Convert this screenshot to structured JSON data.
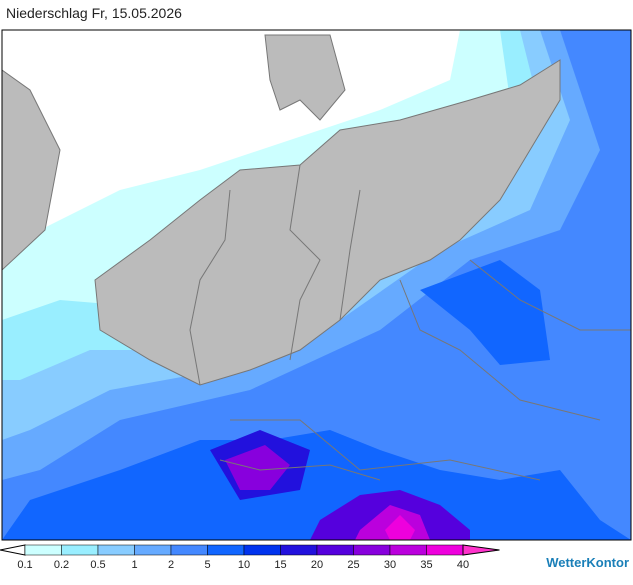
{
  "header": {
    "title": "Niederschlag Fr, 15.05.2026"
  },
  "legend": {
    "labels": [
      "0.1",
      "0.2",
      "0.5",
      "1",
      "2",
      "5",
      "10",
      "15",
      "20",
      "25",
      "30",
      "35",
      "40"
    ],
    "colors": [
      "#ffffff",
      "#ccffff",
      "#99eeff",
      "#88ccff",
      "#66aaff",
      "#4488ff",
      "#1166ff",
      "#0033ee",
      "#2211dd",
      "#5500dd",
      "#8800dd",
      "#bb00dd",
      "#ee00dd",
      "#ff33cc"
    ]
  },
  "brand": "WetterKontor"
}
